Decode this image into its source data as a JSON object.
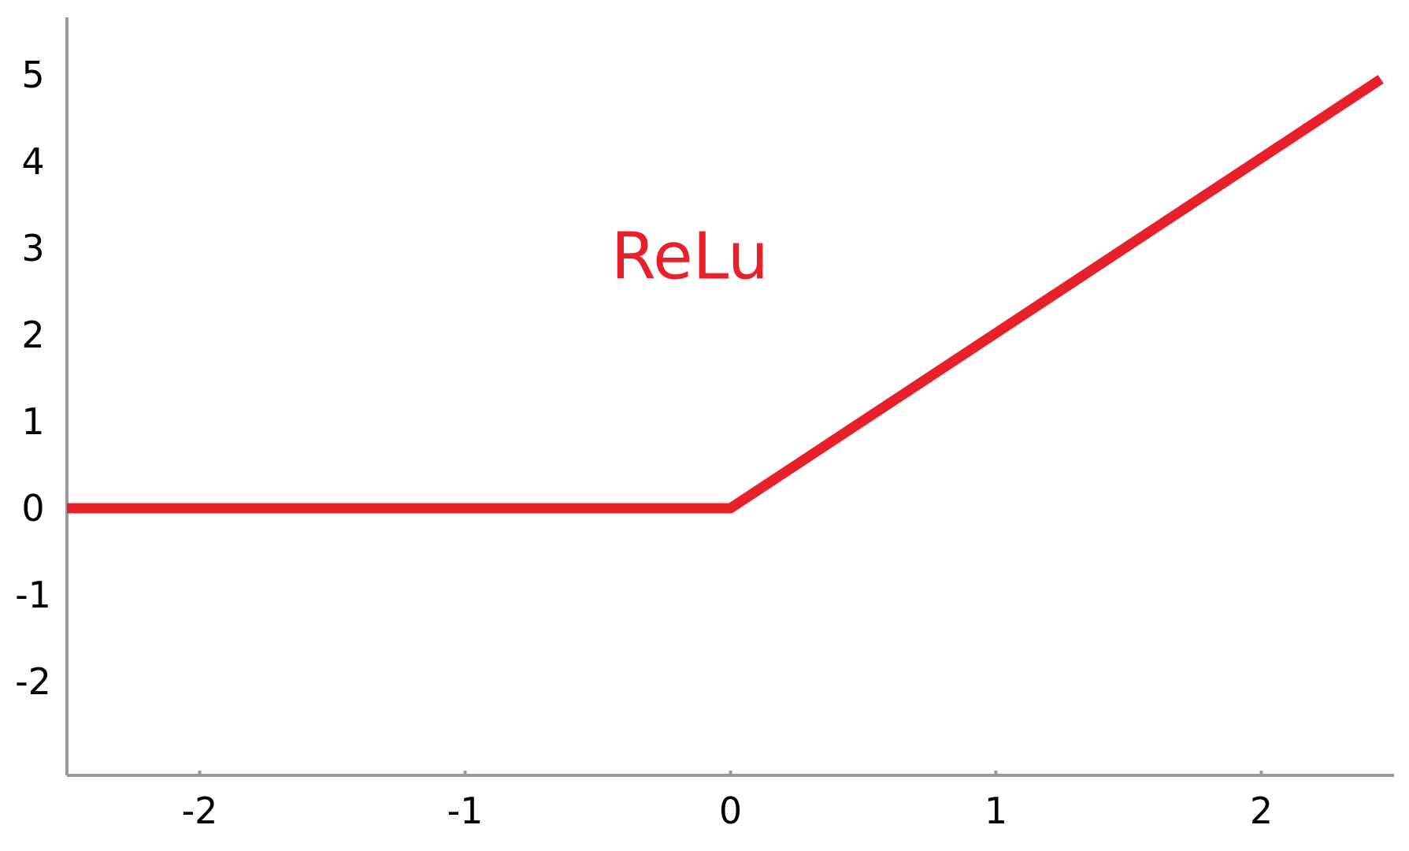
{
  "chart_data": {
    "type": "line",
    "title": "",
    "xlabel": "",
    "ylabel": "",
    "xlim": [
      -2.5,
      2.5
    ],
    "ylim": [
      -3,
      5.5
    ],
    "x_ticks": [
      {
        "value": -2,
        "label": "-2"
      },
      {
        "value": -1,
        "label": "-1"
      },
      {
        "value": 0,
        "label": "0"
      },
      {
        "value": 1,
        "label": "1"
      },
      {
        "value": 2,
        "label": "2"
      }
    ],
    "y_ticks": [
      {
        "value": 5,
        "label": "5"
      },
      {
        "value": 4,
        "label": "4"
      },
      {
        "value": 3,
        "label": "3"
      },
      {
        "value": 2,
        "label": "2"
      },
      {
        "value": 1,
        "label": "1"
      },
      {
        "value": 0,
        "label": "0"
      },
      {
        "value": -1,
        "label": "-1"
      },
      {
        "value": -2,
        "label": "-2"
      }
    ],
    "grid": false,
    "series": [
      {
        "color": "#e8202a",
        "x": [
          -2.5,
          0,
          2.45
        ],
        "y": [
          0,
          0,
          4.95
        ]
      }
    ],
    "annotations": [
      {
        "text": "ReLu",
        "x": -0.45,
        "y": 2.65,
        "color": "#e8202a"
      }
    ]
  }
}
